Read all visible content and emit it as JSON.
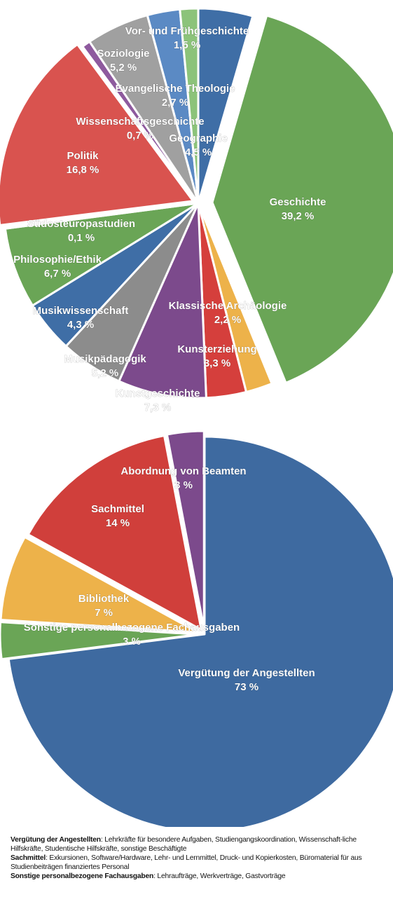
{
  "chart_data": [
    {
      "type": "pie",
      "title": "",
      "slices": [
        {
          "label": "Geographie",
          "value": 4.5,
          "value_label": "4,5 %",
          "color": "#3f6ea6"
        },
        {
          "label": "Geschichte",
          "value": 39.2,
          "value_label": "39,2 %",
          "color": "#6aa556"
        },
        {
          "label": "Klassische Archäologie",
          "value": 2.2,
          "value_label": "2,2 %",
          "color": "#edb24a"
        },
        {
          "label": "Kunsterziehung",
          "value": 3.3,
          "value_label": "3,3 %",
          "color": "#d53f3c"
        },
        {
          "label": "Kunstgeschichte",
          "value": 7.3,
          "value_label": "7,3 %",
          "color": "#7c4a8c"
        },
        {
          "label": "Musikpädagogik",
          "value": 5.2,
          "value_label": "5,2 %",
          "color": "#8c8c8c"
        },
        {
          "label": "Musikwissenschaft",
          "value": 4.3,
          "value_label": "4,3 %",
          "color": "#3f6ea6"
        },
        {
          "label": "Philosophie/Ethik",
          "value": 6.7,
          "value_label": "6,7 %",
          "color": "#6aa556"
        },
        {
          "label": "Südosteuropastudien",
          "value": 0.1,
          "value_label": "0,1 %",
          "color": "#edb24a"
        },
        {
          "label": "Politik",
          "value": 16.8,
          "value_label": "16,8 %",
          "color": "#d9534f"
        },
        {
          "label": "Wissenschaftsgeschichte",
          "value": 0.7,
          "value_label": "0,7 %",
          "color": "#8e5a9e"
        },
        {
          "label": "Soziologie",
          "value": 5.2,
          "value_label": "5,2 %",
          "color": "#a0a0a0"
        },
        {
          "label": "Evangelische Theologie",
          "value": 2.7,
          "value_label": "2,7 %",
          "color": "#5b8ac4"
        },
        {
          "label": "Vor- und Frühgeschichte",
          "value": 1.5,
          "value_label": "1,5 %",
          "color": "#8cc37a"
        }
      ]
    },
    {
      "type": "pie",
      "title": "",
      "slices": [
        {
          "label": "Vergütung der Angestellten",
          "value": 73,
          "value_label": "73 %",
          "color": "#3e6aa0"
        },
        {
          "label": "Sonstige personalbezogene Fachausgaben",
          "value": 3,
          "value_label": "3 %",
          "color": "#6aa556"
        },
        {
          "label": "Bibliothek",
          "value": 7,
          "value_label": "7 %",
          "color": "#edb24a"
        },
        {
          "label": "Sachmittel",
          "value": 14,
          "value_label": "14 %",
          "color": "#d03f3b"
        },
        {
          "label": "Abordnung von Beamten",
          "value": 3,
          "value_label": "3 %",
          "color": "#7c4a8c"
        }
      ]
    }
  ],
  "notes": [
    {
      "term": "Vergütung der Angestellten",
      "text": ": Lehrkräfte für besondere Aufgaben, Studiengangskoordination, Wissenschaft-liche Hilfskräfte, Studentische Hilfskräfte, sonstige Beschäftigte"
    },
    {
      "term": "Sachmittel",
      "text": ": Exkursionen, Software/Hardware, Lehr- und Lernmittel, Druck- und Kopierkosten, Büromaterial für aus Studienbeiträgen finanziertes Personal"
    },
    {
      "term": "Sonstige personalbezogene Fachausgaben",
      "text": ": Lehraufträge, Werkverträge, Gastvorträge"
    }
  ]
}
